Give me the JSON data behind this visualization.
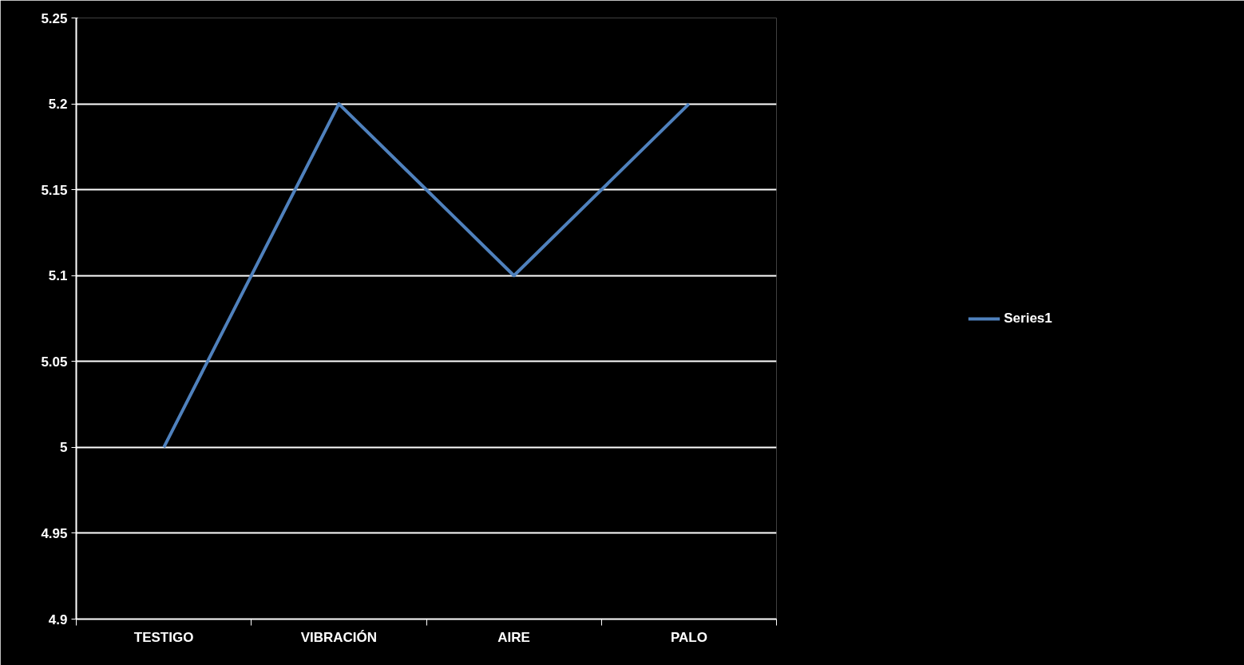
{
  "chart_data": {
    "type": "line",
    "categories": [
      "TESTIGO",
      "VIBRACIÓN",
      "AIRE",
      "PALO"
    ],
    "series": [
      {
        "name": "Series1",
        "color": "#4f81bd",
        "values": [
          5.0,
          5.2,
          5.1,
          5.2
        ]
      }
    ],
    "ylim": [
      4.9,
      5.25
    ],
    "yticks": [
      4.9,
      4.95,
      5,
      5.05,
      5.1,
      5.15,
      5.2,
      5.25
    ],
    "grid": "y",
    "legend": "right",
    "marker": "none",
    "line_style": "solid"
  }
}
